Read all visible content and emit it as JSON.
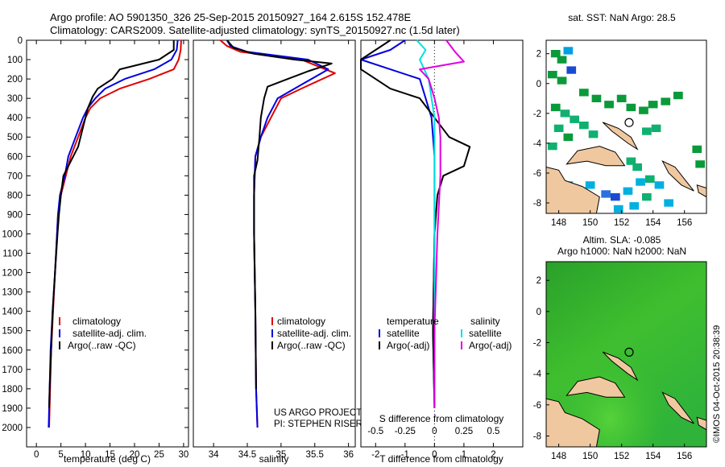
{
  "header": {
    "line1": "Argo profile: AO 5901350_326 25-Sep-2015 20150927_164 2.615S 152.478E",
    "line2": "Climatology: CARS2009. Satellite-adjusted climatology: synTS_20150927.nc (1.5d later)"
  },
  "colors": {
    "climatology": "#e00000",
    "satellite": "#0000e0",
    "argo": "#000000",
    "sat_salinity": "#00e0e0",
    "argo_salinity": "#e000e0",
    "land": "#f0c8a0"
  },
  "chart_data": [
    {
      "type": "line",
      "id": "temperature",
      "xlabel": "temperature (deg C)",
      "ylabel": "",
      "xlim": [
        -2,
        31
      ],
      "ylim": [
        2100,
        0
      ],
      "xticks": [
        0,
        5,
        10,
        15,
        20,
        25,
        30
      ],
      "yticks": [
        0,
        100,
        200,
        300,
        400,
        500,
        600,
        700,
        800,
        900,
        1000,
        1100,
        1200,
        1300,
        1400,
        1500,
        1600,
        1700,
        1800,
        1900,
        2000
      ],
      "legend": [
        "climatology",
        "satellite-adj. clim.",
        "Argo(..raw -QC)"
      ],
      "series": [
        {
          "name": "climatology",
          "color": "#e00000",
          "points": [
            [
              29.5,
              0
            ],
            [
              29.4,
              50
            ],
            [
              29.0,
              100
            ],
            [
              28.0,
              150
            ],
            [
              23.0,
              200
            ],
            [
              17.0,
              250
            ],
            [
              13.0,
              300
            ],
            [
              11.0,
              350
            ],
            [
              10.0,
              400
            ],
            [
              8.5,
              500
            ],
            [
              7.0,
              600
            ],
            [
              6.0,
              700
            ],
            [
              5.0,
              800
            ],
            [
              4.4,
              900
            ],
            [
              4.2,
              1000
            ],
            [
              3.8,
              1200
            ],
            [
              3.4,
              1400
            ],
            [
              3.0,
              1600
            ],
            [
              2.8,
              1800
            ],
            [
              2.6,
              2000
            ]
          ]
        },
        {
          "name": "satellite-adj. clim.",
          "color": "#0000e0",
          "points": [
            [
              28.8,
              0
            ],
            [
              28.6,
              50
            ],
            [
              27.5,
              100
            ],
            [
              24.0,
              150
            ],
            [
              18.0,
              200
            ],
            [
              14.0,
              250
            ],
            [
              12.0,
              300
            ],
            [
              10.5,
              350
            ],
            [
              9.5,
              400
            ],
            [
              8.0,
              500
            ],
            [
              6.5,
              600
            ],
            [
              5.8,
              700
            ],
            [
              4.8,
              800
            ],
            [
              4.4,
              900
            ],
            [
              4.2,
              1000
            ],
            [
              3.8,
              1200
            ],
            [
              3.3,
              1400
            ],
            [
              2.9,
              1600
            ],
            [
              2.7,
              1800
            ],
            [
              2.5,
              2000
            ]
          ]
        },
        {
          "name": "Argo(..raw -QC)",
          "color": "#000000",
          "points": [
            [
              28.0,
              0
            ],
            [
              28.0,
              50
            ],
            [
              25.0,
              100
            ],
            [
              17.0,
              150
            ],
            [
              15.5,
              200
            ],
            [
              12.5,
              250
            ],
            [
              11.5,
              290
            ],
            [
              10.5,
              350
            ],
            [
              9.5,
              450
            ],
            [
              8.5,
              550
            ],
            [
              7.5,
              600
            ],
            [
              6.5,
              650
            ],
            [
              5.5,
              700
            ],
            [
              5.0,
              800
            ],
            [
              4.6,
              900
            ],
            [
              4.3,
              1000
            ],
            [
              3.8,
              1200
            ],
            [
              3.3,
              1400
            ],
            [
              3.0,
              1600
            ],
            [
              2.7,
              1800
            ],
            [
              2.6,
              1900
            ]
          ]
        }
      ]
    },
    {
      "type": "line",
      "id": "salinity",
      "xlabel": "salinity",
      "ylabel": "",
      "xlim": [
        33.7,
        36.1
      ],
      "ylim": [
        2100,
        0
      ],
      "xticks": [
        34,
        34.5,
        35,
        35.5,
        36
      ],
      "legend": [
        "climatology",
        "satellite-adj. clim.",
        "Argo(..raw -QC)"
      ],
      "series": [
        {
          "name": "climatology",
          "color": "#e00000",
          "points": [
            [
              34.1,
              0
            ],
            [
              34.2,
              30
            ],
            [
              34.4,
              60
            ],
            [
              35.3,
              100
            ],
            [
              35.8,
              170
            ],
            [
              35.3,
              250
            ],
            [
              35.0,
              300
            ],
            [
              34.85,
              400
            ],
            [
              34.7,
              500
            ],
            [
              34.62,
              600
            ],
            [
              34.6,
              800
            ],
            [
              34.6,
              1000
            ],
            [
              34.62,
              1400
            ],
            [
              34.63,
              1800
            ],
            [
              34.65,
              2000
            ]
          ]
        },
        {
          "name": "satellite-adj. clim.",
          "color": "#0000e0",
          "points": [
            [
              34.2,
              0
            ],
            [
              34.25,
              30
            ],
            [
              34.5,
              60
            ],
            [
              35.4,
              100
            ],
            [
              35.7,
              150
            ],
            [
              35.3,
              230
            ],
            [
              34.95,
              300
            ],
            [
              34.8,
              400
            ],
            [
              34.7,
              500
            ],
            [
              34.62,
              600
            ],
            [
              34.6,
              800
            ],
            [
              34.6,
              1000
            ],
            [
              34.62,
              1400
            ],
            [
              34.63,
              1800
            ],
            [
              34.65,
              2000
            ]
          ]
        },
        {
          "name": "Argo(..raw -QC)",
          "color": "#000000",
          "points": [
            [
              34.2,
              0
            ],
            [
              34.3,
              40
            ],
            [
              34.6,
              70
            ],
            [
              35.2,
              100
            ],
            [
              35.75,
              120
            ],
            [
              35.4,
              160
            ],
            [
              35.1,
              200
            ],
            [
              34.8,
              240
            ],
            [
              34.75,
              300
            ],
            [
              34.7,
              400
            ],
            [
              34.68,
              500
            ],
            [
              34.65,
              620
            ],
            [
              34.6,
              700
            ],
            [
              34.6,
              800
            ],
            [
              34.6,
              1000
            ],
            [
              34.62,
              1400
            ],
            [
              34.63,
              1800
            ]
          ]
        }
      ]
    },
    {
      "type": "line",
      "id": "difference",
      "xlabel_bottom": "T difference from climatology",
      "xlabel_top": "S difference from climatology",
      "xlim": [
        -2.5,
        3
      ],
      "ylim": [
        2100,
        0
      ],
      "xticks_bottom": [
        -2,
        -1,
        0,
        1,
        2
      ],
      "xticks_top_labels": [
        "-0.5",
        "-0.25",
        "0",
        "0.25",
        "0.5"
      ],
      "legend_temperature_title": "temperature",
      "legend_salinity_title": "salinity",
      "legend_temperature": [
        "satellite",
        "Argo(-adj)"
      ],
      "legend_salinity": [
        "satellite",
        "Argo(-adj)"
      ],
      "series": [
        {
          "name": "temperature satellite",
          "color": "#0000e0",
          "points": [
            [
              -1.0,
              0
            ],
            [
              -1.5,
              50
            ],
            [
              -2.5,
              100
            ],
            [
              -1.5,
              150
            ],
            [
              -0.5,
              200
            ],
            [
              -0.3,
              300
            ],
            [
              -0.1,
              400
            ],
            [
              0.0,
              600
            ],
            [
              0.0,
              1000
            ],
            [
              -0.05,
              1500
            ],
            [
              0.0,
              1900
            ]
          ]
        },
        {
          "name": "temperature Argo(-adj)",
          "color": "#000000",
          "points": [
            [
              -1.5,
              0
            ],
            [
              -2.0,
              50
            ],
            [
              -2.5,
              100
            ],
            [
              -2.5,
              150
            ],
            [
              -2.0,
              200
            ],
            [
              -1.5,
              250
            ],
            [
              -0.5,
              300
            ],
            [
              0.0,
              400
            ],
            [
              0.5,
              500
            ],
            [
              1.2,
              550
            ],
            [
              1.0,
              650
            ],
            [
              0.3,
              700
            ],
            [
              0.1,
              800
            ],
            [
              0.0,
              1000
            ],
            [
              -0.05,
              1500
            ],
            [
              0.0,
              1900
            ]
          ]
        },
        {
          "name": "salinity satellite",
          "color": "#00e0e0",
          "points": [
            [
              -0.6,
              0
            ],
            [
              -0.3,
              50
            ],
            [
              -0.5,
              100
            ],
            [
              -0.2,
              200
            ],
            [
              -0.1,
              300
            ],
            [
              0.0,
              400
            ],
            [
              0.0,
              600
            ],
            [
              0.0,
              1000
            ],
            [
              0.0,
              1500
            ],
            [
              0.0,
              1900
            ]
          ]
        },
        {
          "name": "salinity Argo(-adj)",
          "color": "#e000e0",
          "points": [
            [
              0.4,
              0
            ],
            [
              0.7,
              60
            ],
            [
              1.0,
              110
            ],
            [
              -0.5,
              150
            ],
            [
              -0.2,
              200
            ],
            [
              0.0,
              300
            ],
            [
              0.15,
              400
            ],
            [
              0.2,
              500
            ],
            [
              0.2,
              700
            ],
            [
              0.1,
              1000
            ],
            [
              0.0,
              1500
            ],
            [
              0.0,
              1900
            ]
          ]
        }
      ]
    },
    {
      "type": "heatmap",
      "id": "sst-map",
      "title": "sat. SST: NaN Argo: 28.5",
      "xticks": [
        148,
        150,
        152,
        154,
        156
      ],
      "yticks": [
        2,
        0,
        -2,
        -4,
        -6,
        -8
      ],
      "xlim": [
        147.2,
        157.4
      ],
      "ylim": [
        2.9,
        -8.7
      ]
    },
    {
      "type": "heatmap",
      "id": "sla-map",
      "title_line1": "Altim. SLA: -0.085",
      "title_line2": "Argo h1000: NaN h2000: NaN",
      "xticks": [
        148,
        150,
        152,
        154,
        156
      ],
      "yticks": [
        2,
        0,
        -2,
        -4,
        -6,
        -8
      ],
      "xlim": [
        147.2,
        157.4
      ],
      "ylim": [
        3.2,
        -8.7
      ]
    }
  ],
  "annotations": {
    "project_line1": "US ARGO PROJECT",
    "project_line2": "PI: STEPHEN RISER",
    "imos_stamp": "©IMOS 04-Oct-2015 20:38:39"
  }
}
